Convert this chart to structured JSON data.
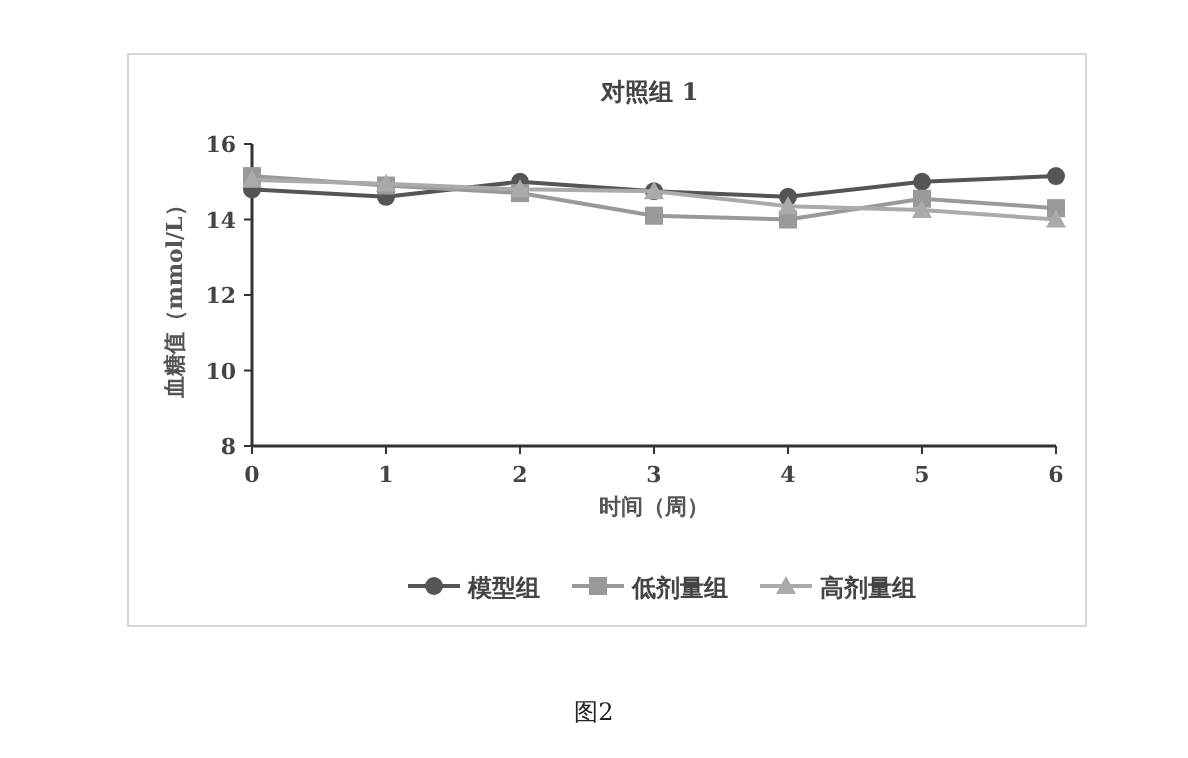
{
  "chart_data": {
    "type": "line",
    "title": "对照组 1",
    "xlabel": "时间（周）",
    "ylabel": "血糖值（mmol/L）",
    "x": [
      0,
      1,
      2,
      3,
      4,
      5,
      6
    ],
    "xlim": [
      0,
      6
    ],
    "xticks": [
      0,
      1,
      2,
      3,
      4,
      5,
      6
    ],
    "ylim": [
      8,
      16
    ],
    "yticks": [
      8,
      10,
      12,
      14,
      16
    ],
    "legend": "bottom",
    "annotations": [
      "图2"
    ],
    "series": [
      {
        "name": "模型组",
        "color": "#555555",
        "marker": "circle",
        "values": [
          14.8,
          14.6,
          15.0,
          14.75,
          14.6,
          15.0,
          15.15
        ]
      },
      {
        "name": "低剂量组",
        "color": "#999999",
        "marker": "square",
        "values": [
          15.15,
          14.9,
          14.7,
          14.1,
          14.0,
          14.55,
          14.3
        ]
      },
      {
        "name": "高剂量组",
        "color": "#aaaaaa",
        "marker": "triangle",
        "values": [
          15.05,
          14.95,
          14.8,
          14.75,
          14.35,
          14.25,
          14.0
        ]
      }
    ]
  }
}
